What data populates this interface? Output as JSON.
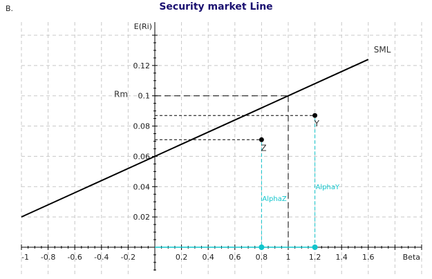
{
  "figure": {
    "corner_label": "B.",
    "title": "Security market Line"
  },
  "colors": {
    "grid": "#c8c8c8",
    "axis": "#000000",
    "sml": "#000000",
    "alpha": "#11c5cc",
    "title": "#1a1070"
  },
  "chart_data": {
    "type": "line",
    "title": "Security market Line",
    "xlabel": "Beta",
    "ylabel": "E(Ri)",
    "xlim": [
      -1,
      2
    ],
    "ylim": [
      0,
      0.14
    ],
    "grid": true,
    "x_ticks": [
      "-1",
      "-0.8",
      "-0.6",
      "-0.4",
      "-0.2",
      "0.2",
      "0.4",
      "0.6",
      "0.8",
      "1",
      "1.2",
      "1.4",
      "1.6"
    ],
    "y_ticks": [
      "0.02",
      "0.04",
      "0.06",
      "0.08",
      "0.1",
      "0.12"
    ],
    "series": [
      {
        "name": "SML",
        "x": [
          -1,
          1.6
        ],
        "y": [
          0.02,
          0.124
        ],
        "style": "solid"
      }
    ],
    "points": [
      {
        "name": "Y",
        "beta": 1.2,
        "return": 0.087,
        "alpha_label": "AlphaY"
      },
      {
        "name": "Z",
        "beta": 0.8,
        "return": 0.071,
        "alpha_label": "AlphaZ"
      }
    ],
    "annotations": [
      {
        "text": "Rm",
        "y": 0.1,
        "note": "market return, dashed guide to beta 1"
      },
      {
        "text": "SML",
        "x": 1.6,
        "y": 0.124
      }
    ],
    "risk_free_rate": 0.06,
    "market_return": 0.1
  }
}
